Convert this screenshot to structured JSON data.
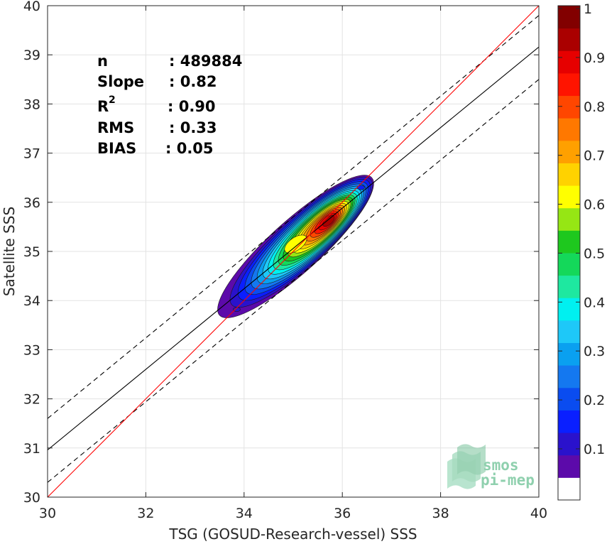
{
  "chart_data": {
    "type": "scatter",
    "subtype": "density-contour",
    "xlabel": "TSG (GOSUD-Research-vessel) SSS",
    "ylabel": "Satellite SSS",
    "xlim": [
      30,
      40
    ],
    "ylim": [
      30,
      40
    ],
    "xticks": [
      "30",
      "32",
      "34",
      "36",
      "38",
      "40"
    ],
    "yticks": [
      "30",
      "31",
      "32",
      "33",
      "34",
      "35",
      "36",
      "37",
      "38",
      "39",
      "40"
    ],
    "grid": true,
    "stats": [
      {
        "key": "n",
        "value": ": 489884"
      },
      {
        "key": "Slope",
        "value": ": 0.82"
      },
      {
        "key": "R",
        "sup": "2",
        "value": ": 0.90"
      },
      {
        "key": "RMS",
        "value": ": 0.33"
      },
      {
        "key": "BIAS",
        "value": ": 0.05"
      }
    ],
    "lines": {
      "identity": {
        "intercept": 0,
        "slope": 1,
        "color": "#ff0000"
      },
      "regression": {
        "intercept": 6.36,
        "slope": 0.82,
        "color": "#000000"
      },
      "upper_bound": {
        "intercept": 7.0,
        "slope": 0.82,
        "color": "#000000",
        "style": "dashed"
      },
      "lower_bound": {
        "intercept": 5.7,
        "slope": 0.82,
        "color": "#000000",
        "style": "dashed"
      }
    },
    "density": {
      "peak": [
        35.72,
        35.62
      ],
      "secondary_peak": [
        35.05,
        35.15
      ],
      "range_x": [
        33.5,
        36.6
      ],
      "range_y": [
        33.7,
        36.5
      ]
    },
    "colorbar": {
      "ticks": [
        "0.1",
        "0.2",
        "0.3",
        "0.4",
        "0.5",
        "0.6",
        "0.7",
        "0.8",
        "0.9",
        "1"
      ],
      "range": [
        0,
        1
      ],
      "colors": [
        "#ffffff",
        "#5c0aaa",
        "#2a12cc",
        "#0a1fff",
        "#0a4cf0",
        "#1478f0",
        "#0aa0f0",
        "#1ec8f8",
        "#00f0f0",
        "#1ee8a0",
        "#14d85a",
        "#1ec81e",
        "#96e614",
        "#ffff00",
        "#ffd200",
        "#ffa000",
        "#ff7800",
        "#ff4600",
        "#ff1400",
        "#e60000",
        "#aa0000",
        "#820000"
      ]
    }
  },
  "logo": {
    "line1": "smos",
    "line2": "pi-mep"
  }
}
